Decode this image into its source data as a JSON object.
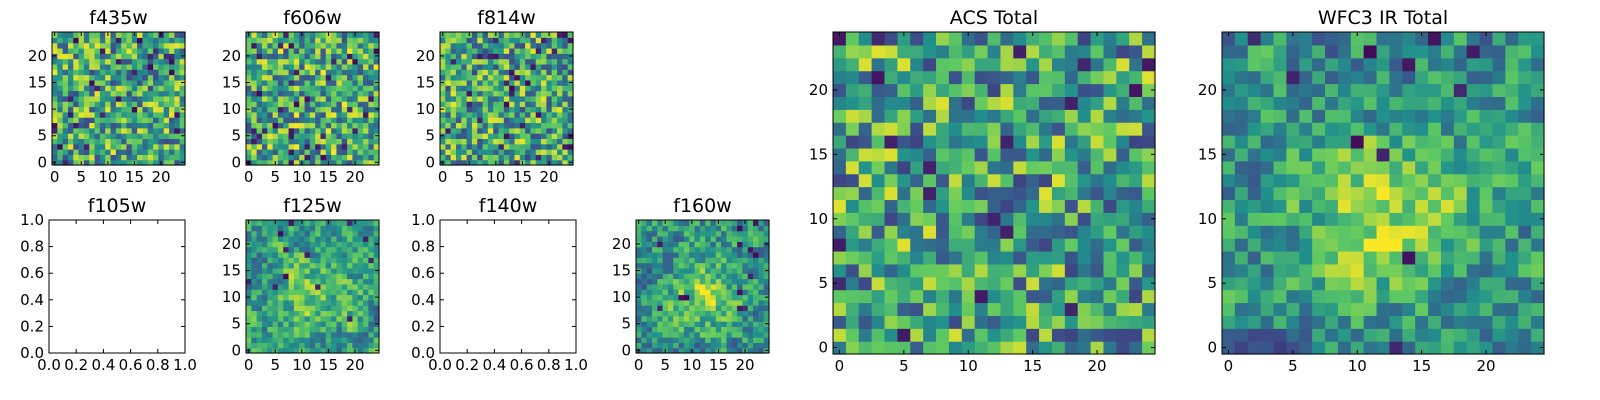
{
  "figure": {
    "colormap": "viridis",
    "color_stops": [
      "#440154",
      "#3b528b",
      "#21918c",
      "#5ec962",
      "#fde725"
    ]
  },
  "chart_data": [
    {
      "id": "f435w",
      "type": "heatmap",
      "title": "f435w",
      "grid_size": 25,
      "seed": 11,
      "smooth": 0,
      "center_boost": 0,
      "dark_fraction": 0.05,
      "bias": 0.6,
      "xticks": [
        0,
        5,
        10,
        15,
        20
      ],
      "yticks": [
        0,
        5,
        10,
        15,
        20
      ],
      "tick_labels_x": [
        "0",
        "5",
        "10",
        "15",
        "20"
      ],
      "tick_labels_y": [
        "0",
        "5",
        "10",
        "15",
        "20"
      ]
    },
    {
      "id": "f606w",
      "type": "heatmap",
      "title": "f606w",
      "grid_size": 25,
      "seed": 23,
      "smooth": 0,
      "center_boost": 0,
      "dark_fraction": 0.05,
      "bias": 0.62,
      "xticks": [
        0,
        5,
        10,
        15,
        20
      ],
      "yticks": [
        0,
        5,
        10,
        15,
        20
      ],
      "tick_labels_x": [
        "0",
        "5",
        "10",
        "15",
        "20"
      ],
      "tick_labels_y": [
        "0",
        "5",
        "10",
        "15",
        "20"
      ]
    },
    {
      "id": "f814w",
      "type": "heatmap",
      "title": "f814w",
      "grid_size": 25,
      "seed": 37,
      "smooth": 0,
      "center_boost": 0,
      "dark_fraction": 0.05,
      "bias": 0.6,
      "xticks": [
        0,
        5,
        10,
        15,
        20
      ],
      "yticks": [
        0,
        5,
        10,
        15,
        20
      ],
      "tick_labels_x": [
        "0",
        "5",
        "10",
        "15",
        "20"
      ],
      "tick_labels_y": [
        "0",
        "5",
        "10",
        "15",
        "20"
      ]
    },
    {
      "id": "f105w",
      "type": "empty",
      "title": "f105w",
      "xlim": [
        0,
        1
      ],
      "ylim": [
        0,
        1
      ],
      "xticks": [
        0,
        0.2,
        0.4,
        0.6,
        0.8,
        1.0
      ],
      "yticks": [
        0,
        0.2,
        0.4,
        0.6,
        0.8,
        1.0
      ],
      "tick_labels_x": [
        "0.0",
        "0.2",
        "0.4",
        "0.6",
        "0.8",
        "1.0"
      ],
      "tick_labels_y": [
        "0.0",
        "0.2",
        "0.4",
        "0.6",
        "0.8",
        "1.0"
      ]
    },
    {
      "id": "f125w",
      "type": "heatmap",
      "title": "f125w",
      "grid_size": 25,
      "seed": 51,
      "smooth": 1,
      "center_boost": 0.25,
      "dark_fraction": 0.02,
      "bias": 0.55,
      "xticks": [
        0,
        5,
        10,
        15,
        20
      ],
      "yticks": [
        0,
        5,
        10,
        15,
        20
      ],
      "tick_labels_x": [
        "0",
        "5",
        "10",
        "15",
        "20"
      ],
      "tick_labels_y": [
        "0",
        "5",
        "10",
        "15",
        "20"
      ]
    },
    {
      "id": "f140w",
      "type": "empty",
      "title": "f140w",
      "xlim": [
        0,
        1
      ],
      "ylim": [
        0,
        1
      ],
      "xticks": [
        0,
        0.2,
        0.4,
        0.6,
        0.8,
        1.0
      ],
      "yticks": [
        0,
        0.2,
        0.4,
        0.6,
        0.8,
        1.0
      ],
      "tick_labels_x": [
        "0.0",
        "0.2",
        "0.4",
        "0.6",
        "0.8",
        "1.0"
      ],
      "tick_labels_y": [
        "0.0",
        "0.2",
        "0.4",
        "0.6",
        "0.8",
        "1.0"
      ]
    },
    {
      "id": "f160w",
      "type": "heatmap",
      "title": "f160w",
      "grid_size": 25,
      "seed": 67,
      "smooth": 1,
      "center_boost": 0.3,
      "dark_fraction": 0.02,
      "bias": 0.52,
      "xticks": [
        0,
        5,
        10,
        15,
        20
      ],
      "yticks": [
        0,
        5,
        10,
        15,
        20
      ],
      "tick_labels_x": [
        "0",
        "5",
        "10",
        "15",
        "20"
      ],
      "tick_labels_y": [
        "0",
        "5",
        "10",
        "15",
        "20"
      ]
    },
    {
      "id": "acs_total",
      "type": "heatmap",
      "title": "ACS Total",
      "grid_size": 25,
      "seed": 83,
      "smooth": 0,
      "center_boost": 0,
      "dark_fraction": 0.035,
      "bias": 0.58,
      "xticks": [
        0,
        5,
        10,
        15,
        20
      ],
      "yticks": [
        0,
        5,
        10,
        15,
        20
      ],
      "tick_labels_x": [
        "0",
        "5",
        "10",
        "15",
        "20"
      ],
      "tick_labels_y": [
        "0",
        "5",
        "10",
        "15",
        "20"
      ]
    },
    {
      "id": "wfc3_ir_total",
      "type": "heatmap",
      "title": "WFC3 IR Total",
      "grid_size": 25,
      "seed": 97,
      "smooth": 1,
      "center_boost": 0.35,
      "dark_fraction": 0.02,
      "bias": 0.5,
      "xticks": [
        0,
        5,
        10,
        15,
        20
      ],
      "yticks": [
        0,
        5,
        10,
        15,
        20
      ],
      "tick_labels_x": [
        "0",
        "5",
        "10",
        "15",
        "20"
      ],
      "tick_labels_y": [
        "0",
        "5",
        "10",
        "15",
        "20"
      ]
    }
  ]
}
